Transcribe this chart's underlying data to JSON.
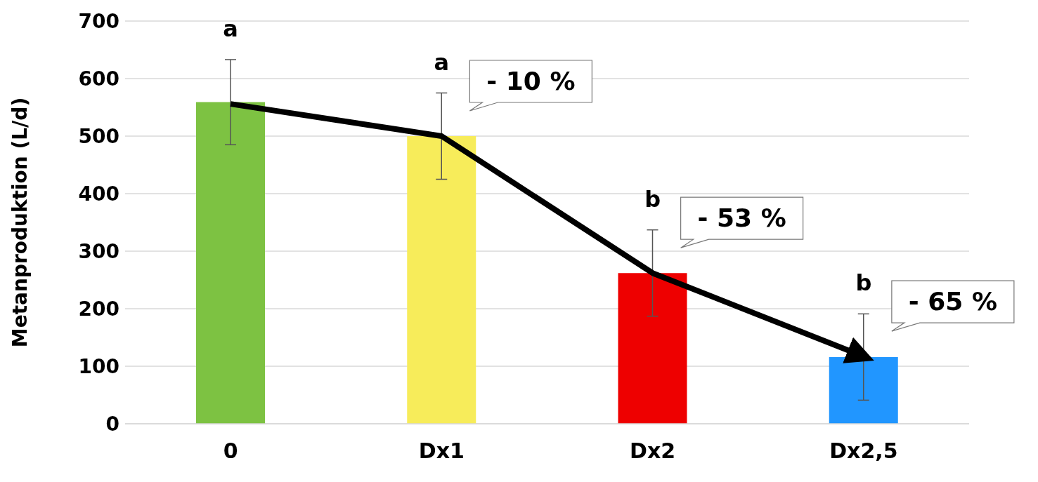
{
  "chart_data": {
    "type": "bar",
    "ylabel": "Metanproduktion (L/d)",
    "categories": [
      "0",
      "Dx1",
      "Dx2",
      "Dx2,5"
    ],
    "series": [
      {
        "colors": [
          "#7dc242",
          "#f7ec5a",
          "#ee0000",
          "#2196ff"
        ],
        "values": [
          559,
          500,
          262,
          116
        ],
        "errors": [
          74,
          75,
          75,
          75
        ]
      },
      {
        "type": "line",
        "color": "#000000",
        "x": [
          "0",
          "Dx1",
          "Dx2",
          "Dx2,5"
        ],
        "values": [
          556,
          500,
          262,
          117
        ],
        "marker": "none"
      }
    ],
    "ylim": [
      0,
      700
    ],
    "yticks": [
      0,
      100,
      200,
      300,
      400,
      500,
      600,
      700
    ],
    "grid": "y",
    "annotations": [
      "a",
      "a",
      "b",
      "b",
      "- 10 %",
      "- 53 %",
      "- 65 %"
    ]
  }
}
